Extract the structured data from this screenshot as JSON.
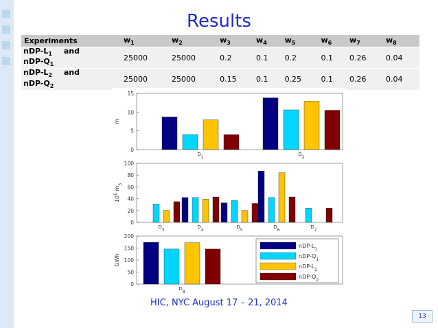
{
  "title": "Results",
  "table": {
    "header": {
      "label": "Experiments",
      "cols": [
        [
          "w",
          "1"
        ],
        [
          "w",
          "2"
        ],
        [
          "w",
          "3"
        ],
        [
          "w",
          "4"
        ],
        [
          "w",
          "5"
        ],
        [
          "w",
          "6"
        ],
        [
          "w",
          "7"
        ],
        [
          "w",
          "8"
        ]
      ]
    },
    "rows": [
      {
        "line1": [
          "nDP-L",
          "1"
        ],
        "and": "and",
        "line2": [
          "nDP-Q",
          "1"
        ],
        "values": [
          "25000",
          "25000",
          "0.2",
          "0.1",
          "0.2",
          "0.1",
          "0.26",
          "0.04"
        ]
      },
      {
        "line1": [
          "nDP-L",
          "2"
        ],
        "and": "and",
        "line2": [
          "nDP-Q",
          "2"
        ],
        "values": [
          "25000",
          "25000",
          "0.15",
          "0.1",
          "0.25",
          "0.1",
          "0.26",
          "0.04"
        ]
      }
    ]
  },
  "colors": {
    "L1": "#000080",
    "Q1": "#00d6ff",
    "L2": "#ffc400",
    "Q2": "#800000"
  },
  "chart_data": [
    {
      "type": "bar",
      "ylabel": "m",
      "ylim": [
        0,
        15
      ],
      "yticks": [
        0,
        5,
        10,
        15
      ],
      "categories": [
        [
          "D",
          "1"
        ],
        [
          "D",
          "2"
        ]
      ],
      "series": [
        {
          "name": [
            "nDP-L",
            "1"
          ],
          "values": [
            8.7,
            13.8
          ]
        },
        {
          "name": [
            "nDP-Q",
            "1"
          ],
          "values": [
            4.0,
            10.6
          ]
        },
        {
          "name": [
            "nDP-L",
            "2"
          ],
          "values": [
            7.9,
            12.9
          ]
        },
        {
          "name": [
            "nDP-Q",
            "2"
          ],
          "values": [
            4.0,
            10.5
          ]
        }
      ]
    },
    {
      "type": "bar",
      "ylabel": [
        "10",
        "6",
        " m",
        "3"
      ],
      "ylim": [
        0,
        100
      ],
      "yticks": [
        0,
        20,
        40,
        60,
        80,
        100
      ],
      "categories": [
        [
          "D",
          "3"
        ],
        [
          "D",
          "4"
        ],
        [
          "D",
          "5"
        ],
        [
          "D",
          "6"
        ],
        [
          "D",
          "7"
        ]
      ],
      "series": [
        {
          "name": [
            "nDP-L",
            "1"
          ],
          "values": [
            0,
            42,
            33,
            87,
            0
          ]
        },
        {
          "name": [
            "nDP-Q",
            "1"
          ],
          "values": [
            31,
            42,
            37,
            42,
            24
          ]
        },
        {
          "name": [
            "nDP-L",
            "2"
          ],
          "values": [
            20,
            39,
            20,
            84,
            0
          ]
        },
        {
          "name": [
            "nDP-Q",
            "2"
          ],
          "values": [
            35,
            43,
            32,
            43,
            24
          ]
        }
      ]
    },
    {
      "type": "bar",
      "ylabel": "GWh",
      "ylim": [
        0,
        200
      ],
      "yticks": [
        0,
        50,
        100,
        150,
        200
      ],
      "legend": "top-right",
      "categories": [
        [
          "D",
          "8"
        ]
      ],
      "series": [
        {
          "name": [
            "nDP-L",
            "1"
          ],
          "values": [
            174
          ]
        },
        {
          "name": [
            "nDP-Q",
            "1"
          ],
          "values": [
            146
          ]
        },
        {
          "name": [
            "nDP-L",
            "2"
          ],
          "values": [
            172
          ]
        },
        {
          "name": [
            "nDP-Q",
            "2"
          ],
          "values": [
            146
          ]
        }
      ]
    }
  ],
  "footer": "HIC, NYC August 17 – 21, 2014",
  "page_number": "13"
}
